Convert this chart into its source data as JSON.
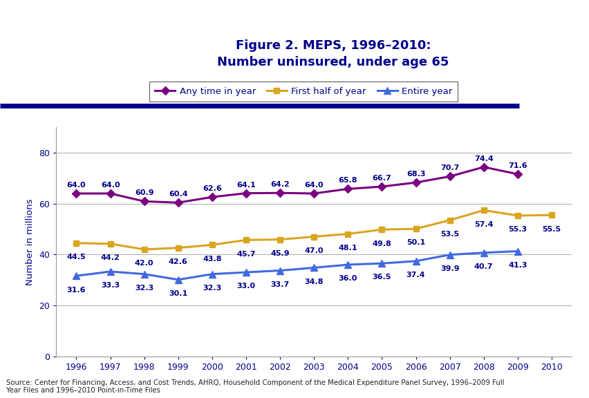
{
  "title_line1": "Figure 2. MEPS, 1996–2010:",
  "title_line2": "Number uninsured, under age 65",
  "ylabel": "Number in millions",
  "years_all": [
    1996,
    1997,
    1998,
    1999,
    2000,
    2001,
    2002,
    2003,
    2004,
    2005,
    2006,
    2007,
    2008,
    2009,
    2010
  ],
  "years_any_time": [
    1996,
    1997,
    1998,
    1999,
    2000,
    2001,
    2002,
    2003,
    2004,
    2005,
    2006,
    2007,
    2008,
    2009
  ],
  "years_entire_year": [
    1996,
    1997,
    1998,
    1999,
    2000,
    2001,
    2002,
    2003,
    2004,
    2005,
    2006,
    2007,
    2008,
    2009
  ],
  "years_first_half": [
    1996,
    1997,
    1998,
    1999,
    2000,
    2001,
    2002,
    2003,
    2004,
    2005,
    2006,
    2007,
    2008,
    2009,
    2010
  ],
  "any_time": [
    64.0,
    64.0,
    60.9,
    60.4,
    62.6,
    64.1,
    64.2,
    64.0,
    65.8,
    66.7,
    68.3,
    70.7,
    74.4,
    71.6
  ],
  "first_half": [
    44.5,
    44.2,
    42.0,
    42.6,
    43.8,
    45.7,
    45.9,
    47.0,
    48.1,
    49.8,
    50.1,
    53.5,
    57.4,
    55.3,
    55.5
  ],
  "entire_year": [
    31.6,
    33.3,
    32.3,
    30.1,
    32.3,
    33.0,
    33.7,
    34.8,
    36.0,
    36.5,
    37.4,
    39.9,
    40.7,
    41.3
  ],
  "color_any_time": "#7B0081",
  "color_first_half": "#DAA520",
  "color_entire_year": "#4169E1",
  "label_any_time": "Any time in year",
  "label_first_half": "First half of year",
  "label_entire_year": "Entire year",
  "ylim": [
    0,
    90
  ],
  "yticks": [
    0,
    20,
    40,
    60,
    80
  ],
  "source_text": "Source: Center for Financing, Access, and Cost Trends, AHRQ, Household Component of the Medical Expenditure Panel Survey, 1996–2009 Full\nYear Files and 1996–2010 Point-in-Time Files",
  "bg_color": "#FFFFFF",
  "title_color": "#00008B",
  "axis_label_color": "#00008B",
  "tick_label_color": "#00008B",
  "data_label_color": "#00008B",
  "legend_border_color": "#333333",
  "top_bar_color": "#00008B",
  "grid_color": "#AAAAAA"
}
